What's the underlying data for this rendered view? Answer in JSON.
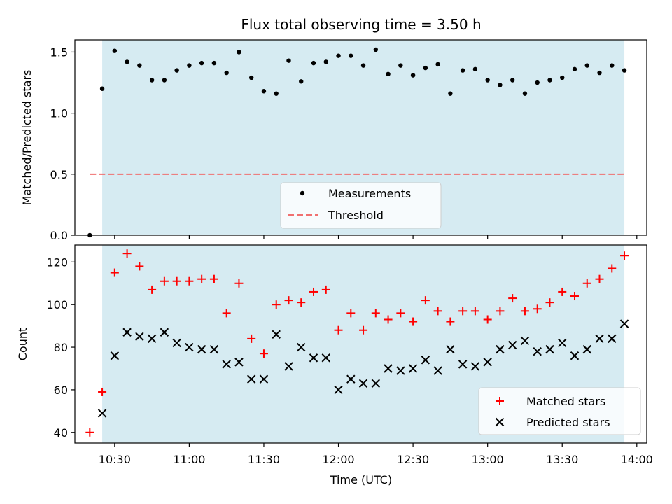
{
  "chart_data": [
    {
      "type": "scatter",
      "title": "Flux total observing time = 3.50 h",
      "xlabel": "",
      "ylabel": "Matched/Predicted stars",
      "xlim": [
        "10:14",
        "14:04"
      ],
      "ylim": [
        0,
        1.6
      ],
      "x_ticks": [
        "10:30",
        "11:00",
        "11:30",
        "12:00",
        "12:30",
        "13:00",
        "13:30",
        "14:00"
      ],
      "y_ticks": [
        "0.0",
        "0.5",
        "1.0",
        "1.5"
      ],
      "shaded_span": [
        "10:25",
        "13:55"
      ],
      "shade_color": "#add8e6",
      "legend_position": "lower-center",
      "series": [
        {
          "name": "Measurements",
          "marker": "dot",
          "color": "#000000",
          "x": [
            "10:20",
            "10:25",
            "10:30",
            "10:35",
            "10:40",
            "10:45",
            "10:50",
            "10:55",
            "11:00",
            "11:05",
            "11:10",
            "11:15",
            "11:20",
            "11:25",
            "11:30",
            "11:35",
            "11:40",
            "11:45",
            "11:50",
            "11:55",
            "12:00",
            "12:05",
            "12:10",
            "12:15",
            "12:20",
            "12:25",
            "12:30",
            "12:35",
            "12:40",
            "12:45",
            "12:50",
            "12:55",
            "13:00",
            "13:05",
            "13:10",
            "13:15",
            "13:20",
            "13:25",
            "13:30",
            "13:35",
            "13:40",
            "13:45",
            "13:50",
            "13:55"
          ],
          "y": [
            0.0,
            1.2,
            1.51,
            1.42,
            1.39,
            1.27,
            1.27,
            1.35,
            1.39,
            1.41,
            1.41,
            1.33,
            1.5,
            1.29,
            1.18,
            1.16,
            1.43,
            1.26,
            1.41,
            1.42,
            1.47,
            1.47,
            1.39,
            1.52,
            1.32,
            1.39,
            1.31,
            1.37,
            1.4,
            1.16,
            1.35,
            1.36,
            1.27,
            1.23,
            1.27,
            1.16,
            1.25,
            1.27,
            1.29,
            1.36,
            1.39,
            1.33,
            1.39,
            1.35
          ]
        },
        {
          "name": "Threshold",
          "marker": "dashed-line",
          "color": "#f07070",
          "x": [
            "10:20",
            "13:55"
          ],
          "y": [
            0.5,
            0.5
          ]
        }
      ]
    },
    {
      "type": "scatter",
      "title": "",
      "xlabel": "Time (UTC)",
      "ylabel": "Count",
      "xlim": [
        "10:14",
        "14:04"
      ],
      "ylim": [
        35,
        128
      ],
      "x_ticks": [
        "10:30",
        "11:00",
        "11:30",
        "12:00",
        "12:30",
        "13:00",
        "13:30",
        "14:00"
      ],
      "y_ticks": [
        "40",
        "60",
        "80",
        "100",
        "120"
      ],
      "shaded_span": [
        "10:25",
        "13:55"
      ],
      "shade_color": "#add8e6",
      "legend_position": "lower-right",
      "series": [
        {
          "name": "Matched stars",
          "marker": "plus",
          "color": "#ff0000",
          "x": [
            "10:20",
            "10:25",
            "10:30",
            "10:35",
            "10:40",
            "10:45",
            "10:50",
            "10:55",
            "11:00",
            "11:05",
            "11:10",
            "11:15",
            "11:20",
            "11:25",
            "11:30",
            "11:35",
            "11:40",
            "11:45",
            "11:50",
            "11:55",
            "12:00",
            "12:05",
            "12:10",
            "12:15",
            "12:20",
            "12:25",
            "12:30",
            "12:35",
            "12:40",
            "12:45",
            "12:50",
            "12:55",
            "13:00",
            "13:05",
            "13:10",
            "13:15",
            "13:20",
            "13:25",
            "13:30",
            "13:35",
            "13:40",
            "13:45",
            "13:50",
            "13:55"
          ],
          "y": [
            40,
            59,
            115,
            124,
            118,
            107,
            111,
            111,
            111,
            112,
            112,
            96,
            110,
            84,
            77,
            100,
            102,
            101,
            106,
            107,
            88,
            96,
            88,
            96,
            93,
            96,
            92,
            102,
            97,
            92,
            97,
            97,
            93,
            97,
            103,
            97,
            98,
            101,
            106,
            104,
            110,
            112,
            117,
            123
          ]
        },
        {
          "name": "Predicted stars",
          "marker": "cross",
          "color": "#000000",
          "x": [
            "10:25",
            "10:30",
            "10:35",
            "10:40",
            "10:45",
            "10:50",
            "10:55",
            "11:00",
            "11:05",
            "11:10",
            "11:15",
            "11:20",
            "11:25",
            "11:30",
            "11:35",
            "11:40",
            "11:45",
            "11:50",
            "11:55",
            "12:00",
            "12:05",
            "12:10",
            "12:15",
            "12:20",
            "12:25",
            "12:30",
            "12:35",
            "12:40",
            "12:45",
            "12:50",
            "12:55",
            "13:00",
            "13:05",
            "13:10",
            "13:15",
            "13:20",
            "13:25",
            "13:30",
            "13:35",
            "13:40",
            "13:45",
            "13:50",
            "13:55"
          ],
          "y": [
            49,
            76,
            87,
            85,
            84,
            87,
            82,
            80,
            79,
            79,
            72,
            73,
            65,
            65,
            86,
            71,
            80,
            75,
            75,
            60,
            65,
            63,
            63,
            70,
            69,
            70,
            74,
            69,
            79,
            72,
            71,
            73,
            79,
            81,
            83,
            78,
            79,
            82,
            76,
            79,
            84,
            84,
            91
          ]
        }
      ]
    }
  ]
}
